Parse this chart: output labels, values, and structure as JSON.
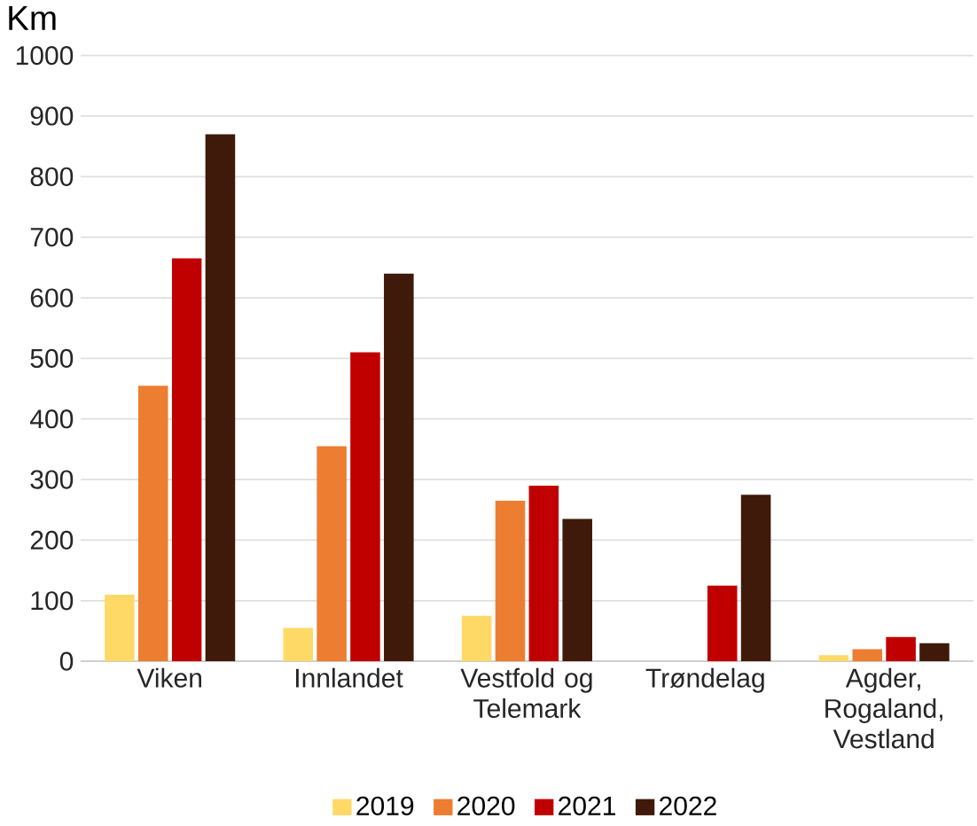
{
  "chart_data": {
    "type": "bar",
    "ylabel": "Km",
    "categories": [
      "Viken",
      "Innlandet",
      "Vestfold og Telemark",
      "Trøndelag",
      "Agder, Rogaland, Vestland"
    ],
    "series": [
      {
        "name": "2019",
        "color": "#ffd966",
        "values": [
          110,
          55,
          75,
          null,
          10
        ]
      },
      {
        "name": "2020",
        "color": "#ed7d31",
        "values": [
          455,
          355,
          265,
          null,
          20
        ]
      },
      {
        "name": "2021",
        "color": "#c00000",
        "values": [
          665,
          510,
          290,
          125,
          40
        ]
      },
      {
        "name": "2022",
        "color": "#3f1a0a",
        "values": [
          870,
          640,
          235,
          275,
          30
        ]
      }
    ],
    "ylim": [
      0,
      1000
    ],
    "yticks": [
      0,
      100,
      200,
      300,
      400,
      500,
      600,
      700,
      800,
      900,
      1000
    ],
    "grid": "y",
    "legend": "bottom"
  }
}
